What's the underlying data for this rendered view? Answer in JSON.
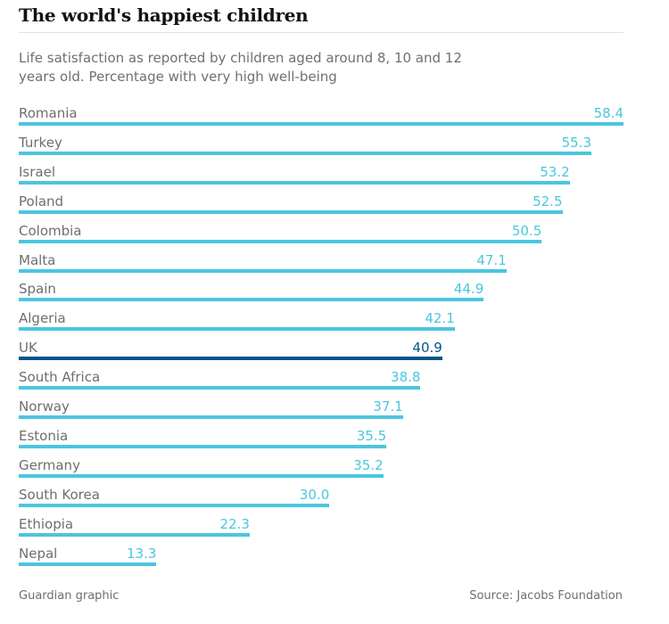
{
  "chart_data": {
    "type": "bar",
    "orientation": "horizontal",
    "title": "The world's happiest children",
    "subtitle": "Life satisfaction as reported by children aged around 8, 10 and 12 years old. Percentage with very high well-being",
    "xlabel": "",
    "ylabel": "",
    "xlim": [
      0,
      58.4
    ],
    "grid": false,
    "categories": [
      "Romania",
      "Turkey",
      "Israel",
      "Poland",
      "Colombia",
      "Malta",
      "Spain",
      "Algeria",
      "UK",
      "South Africa",
      "Norway",
      "Estonia",
      "Germany",
      "South Korea",
      "Ethiopia",
      "Nepal"
    ],
    "values": [
      58.4,
      55.3,
      53.2,
      52.5,
      50.5,
      47.1,
      44.9,
      42.1,
      40.9,
      38.8,
      37.1,
      35.5,
      35.2,
      30.0,
      22.3,
      13.3
    ],
    "value_labels": [
      "58.4",
      "55.3",
      "53.2",
      "52.5",
      "50.5",
      "47.1",
      "44.9",
      "42.1",
      "40.9",
      "38.8",
      "37.1",
      "35.5",
      "35.2",
      "30.0",
      "22.3",
      "13.3"
    ],
    "highlight": "UK",
    "colors": {
      "default": "#4bc6df",
      "highlight": "#005689"
    }
  },
  "footer": {
    "credit": "Guardian graphic",
    "source": "Source: Jacobs Foundation"
  }
}
